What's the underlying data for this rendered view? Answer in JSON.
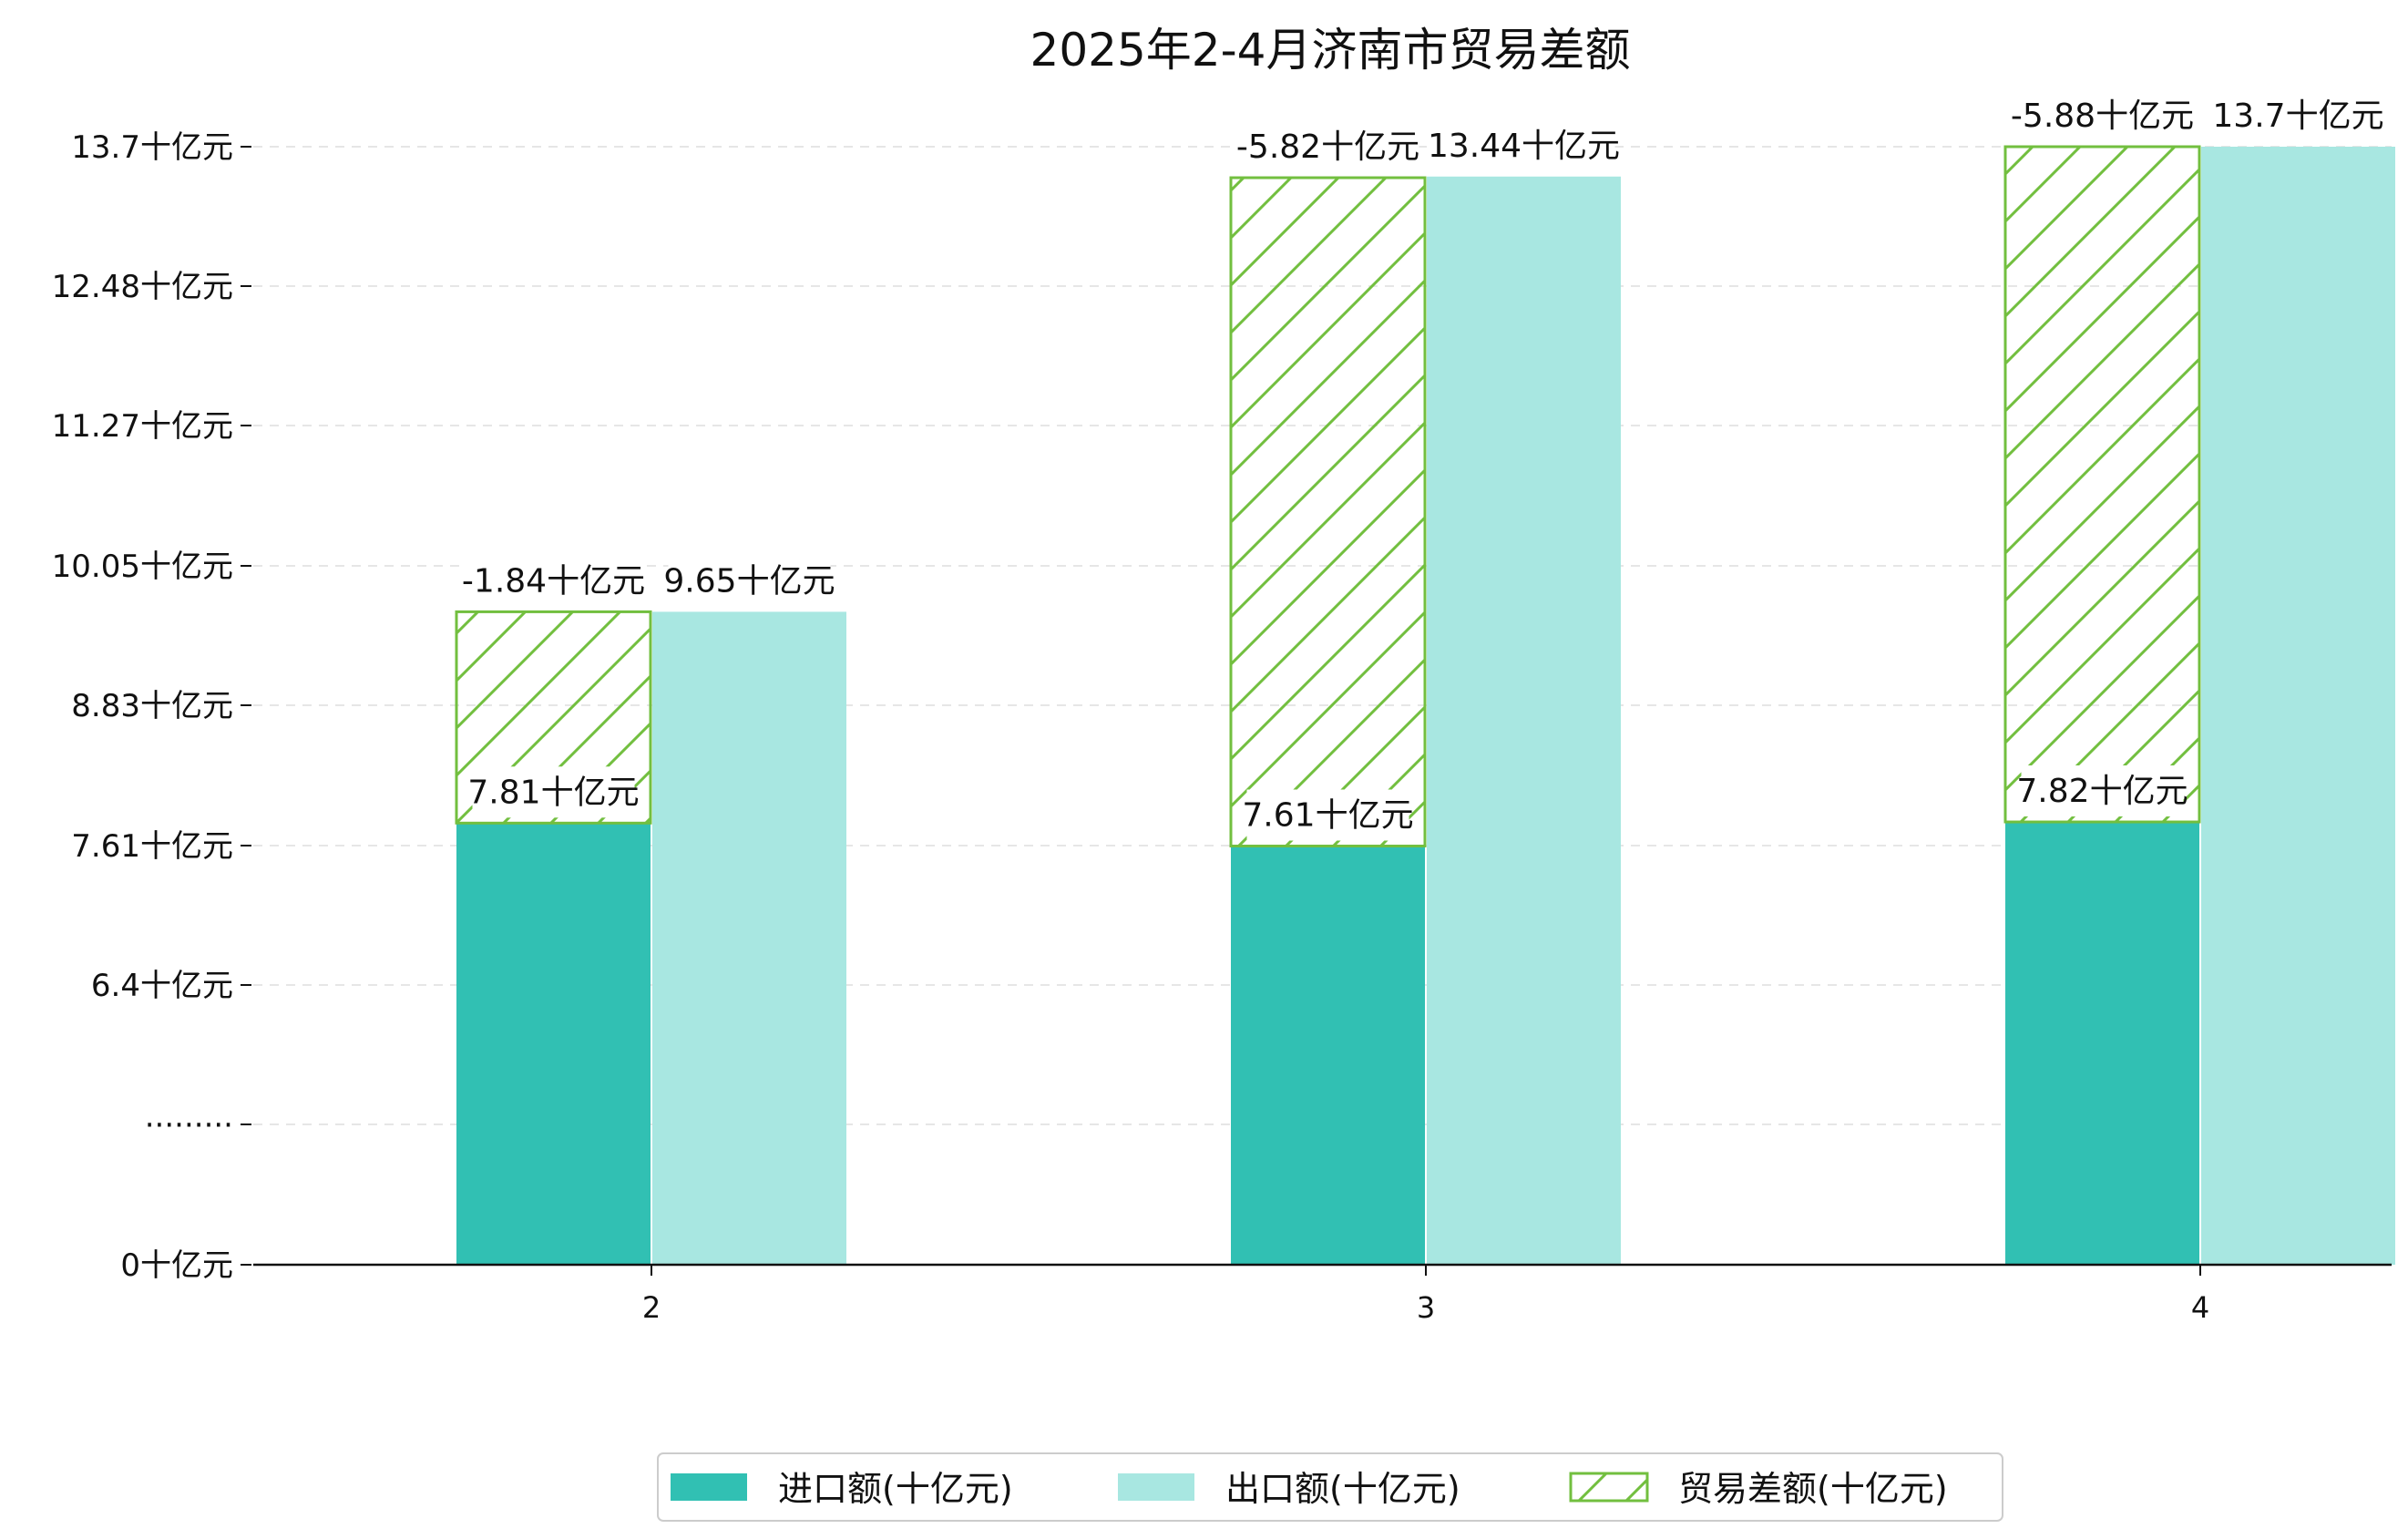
{
  "chart_data": {
    "type": "bar",
    "title": "2025年2-4月济南市贸易差额",
    "xlabel": "",
    "ylabel": "",
    "categories": [
      "2",
      "3",
      "4"
    ],
    "y_ticks": [
      "0十亿元",
      "·········",
      "6.4十亿元",
      "7.61十亿元",
      "8.83十亿元",
      "10.05十亿元",
      "11.27十亿元",
      "12.48十亿元",
      "13.7十亿元"
    ],
    "ylim": [
      0,
      13.7
    ],
    "series": [
      {
        "name": "进口额(十亿元)",
        "values": [
          7.81,
          7.61,
          7.82
        ],
        "labels": [
          "7.81十亿元",
          "7.61十亿元",
          "7.82十亿元"
        ],
        "color": "#31c0b3"
      },
      {
        "name": "出口额(十亿元)",
        "values": [
          9.65,
          13.44,
          13.7
        ],
        "labels": [
          "9.65十亿元",
          "13.44十亿元",
          "13.7十亿元"
        ],
        "color": "#a8e7e1"
      },
      {
        "name": "贸易差额(十亿元)",
        "values": [
          -1.84,
          -5.82,
          -5.88
        ],
        "labels": [
          "-1.84十亿元",
          "-5.82十亿元",
          "-5.88十亿元"
        ],
        "color": "#72bf3f"
      }
    ],
    "legend_position": "bottom",
    "grid": "horizontal-dashed"
  }
}
